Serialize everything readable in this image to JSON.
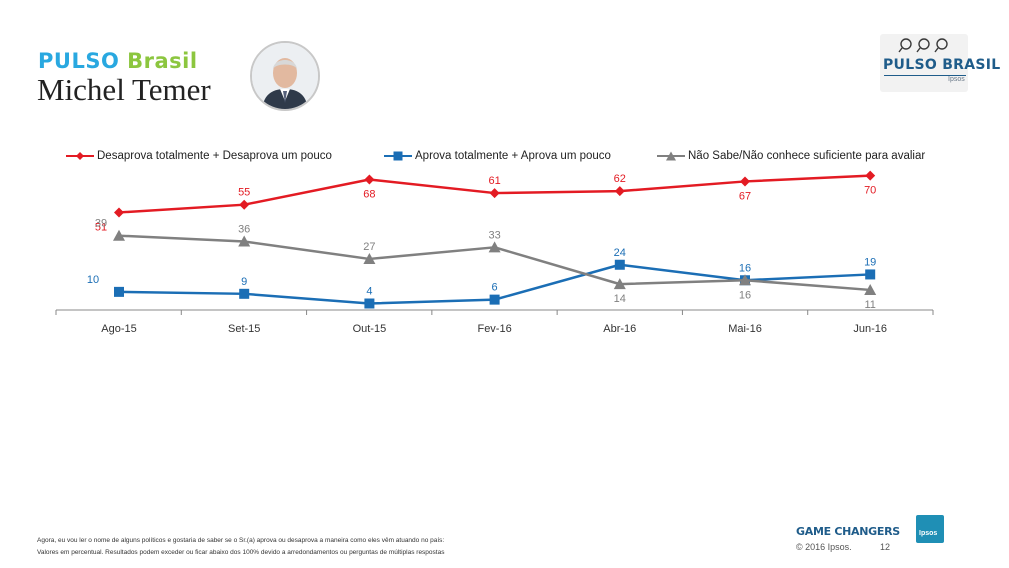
{
  "header": {
    "brand_part1": "PULSO",
    "brand_part2": "Brasil",
    "person_name": "Michel Temer"
  },
  "logo": {
    "title": "PULSO BRASIL",
    "subtitle": "Ipsos",
    "icons": [
      "magnifier-icon",
      "magnifier-icon",
      "magnifier-icon"
    ]
  },
  "colors": {
    "disapprove": "#e31b23",
    "approve": "#1b6eb5",
    "unknown": "#808080",
    "axis": "#888888"
  },
  "chart_data": {
    "type": "line",
    "categories": [
      "Ago-15",
      "Set-15",
      "Out-15",
      "Fev-16",
      "Abr-16",
      "Mai-16",
      "Jun-16"
    ],
    "series": [
      {
        "name": "Desaprova totalmente +  Desaprova um pouco",
        "values": [
          51,
          55,
          68,
          61,
          62,
          67,
          70
        ],
        "color": "#e31b23",
        "marker": "diamond"
      },
      {
        "name": "Aprova totalmente + Aprova um pouco",
        "values": [
          10,
          9,
          4,
          6,
          24,
          16,
          19
        ],
        "color": "#1b6eb5",
        "marker": "square"
      },
      {
        "name": "Não Sabe/Não conhece suficiente para avaliar",
        "values": [
          39,
          36,
          27,
          33,
          14,
          16,
          11
        ],
        "color": "#808080",
        "marker": "triangle"
      }
    ],
    "legend_position": "top",
    "grid": false
  },
  "footer": {
    "note_line1": "Agora, eu vou ler o nome de alguns políticos e gostaria de saber se o Sr.(a) aprova ou desaprova a maneira como eles vêm atuando no país:",
    "note_line2": "Valores em percentual. Resultados podem exceder ou ficar abaixo dos 100% devido a arredondamentos ou perguntas de  múltiplas respostas",
    "tagline": "GAME CHANGERS",
    "copyright": "© 2016 Ipsos.",
    "page_number": "12",
    "ipsos_logo_text": "Ipsos"
  }
}
